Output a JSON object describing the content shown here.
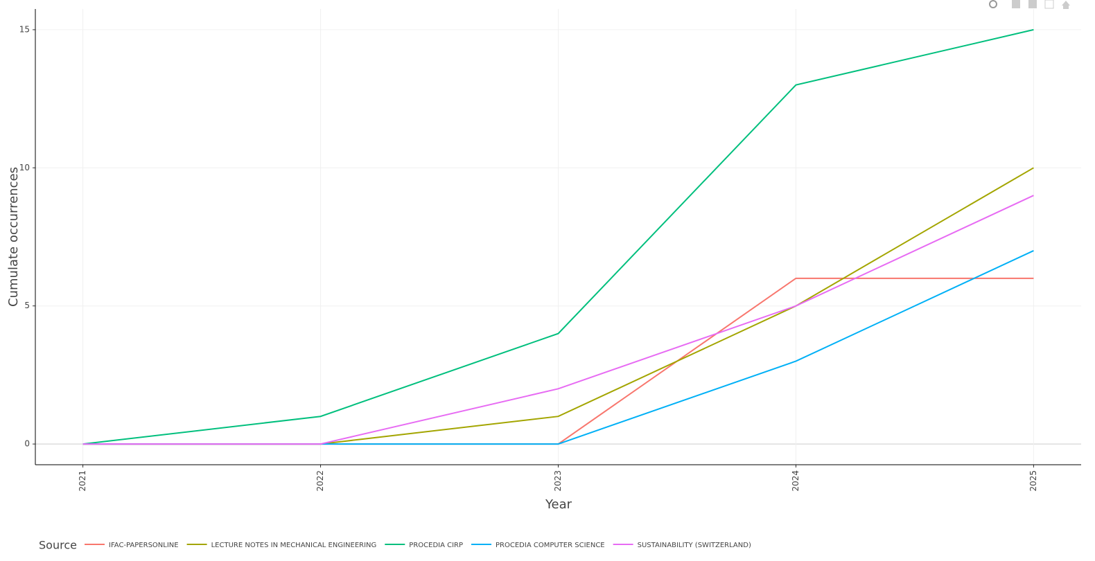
{
  "chart_data": {
    "type": "line",
    "x_label": "Year",
    "y_label": "Cumulate occurrences",
    "legend_title": "Source",
    "x": [
      2021,
      2022,
      2023,
      2024,
      2025
    ],
    "series": [
      {
        "name": "IFAC-PAPERSONLINE",
        "color": "#F8766D",
        "values": [
          0,
          0,
          0,
          6,
          6
        ]
      },
      {
        "name": "LECTURE NOTES IN MECHANICAL ENGINEERING",
        "color": "#A3A500",
        "values": [
          0,
          0,
          1,
          5,
          10
        ]
      },
      {
        "name": "PROCEDIA CIRP",
        "color": "#00BF7D",
        "values": [
          0,
          1,
          4,
          13,
          15
        ]
      },
      {
        "name": "PROCEDIA COMPUTER SCIENCE",
        "color": "#00B0F6",
        "values": [
          0,
          0,
          0,
          3,
          7
        ]
      },
      {
        "name": "SUSTAINABILITY (SWITZERLAND)",
        "color": "#E76BF3",
        "values": [
          0,
          0,
          2,
          5,
          9
        ]
      }
    ],
    "xlim": [
      2020.8,
      2025.2
    ],
    "xticks": [
      2021,
      2022,
      2023,
      2024,
      2025
    ],
    "ylim": [
      -0.75,
      15.75
    ],
    "yticks": [
      0,
      5,
      10,
      15
    ],
    "grid": true,
    "legend": "bottom"
  }
}
